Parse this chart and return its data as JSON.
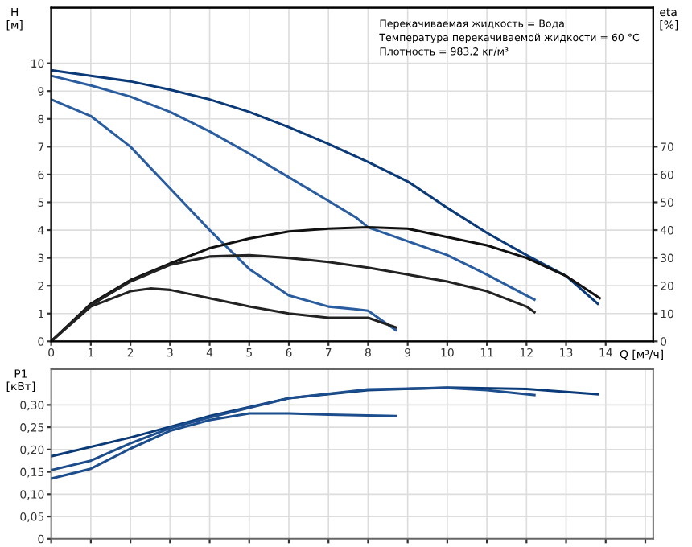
{
  "chart_data": [
    {
      "type": "line",
      "xlabel": "Q [м³/ч]",
      "ylabel": "H\n[м]",
      "y2label": "eta\n[%]",
      "annotations": [
        "Перекачиваемая жидкость = Вода",
        "Температура перекачиваемой жидкости = 60 °C",
        "Плотность = 983.2 кг/м³"
      ],
      "xlim": [
        0,
        15.2
      ],
      "xticks": [
        0,
        1,
        2,
        3,
        4,
        5,
        6,
        7,
        8,
        9,
        10,
        11,
        12,
        13,
        14
      ],
      "ylim": [
        0,
        12
      ],
      "yticks": [
        0,
        1,
        2,
        3,
        4,
        5,
        6,
        7,
        8,
        9,
        10
      ],
      "y2lim": [
        0,
        120
      ],
      "y2ticks": [
        0,
        10,
        20,
        30,
        40,
        50,
        60,
        70
      ],
      "grid": true,
      "marker": "none",
      "line_style": "solid",
      "series": [
        {
          "color": "#0b3a78",
          "x": [
            0,
            1,
            2,
            3,
            4,
            5,
            6,
            7,
            8,
            9,
            10,
            11,
            12,
            12.4,
            13,
            13.8
          ],
          "values": [
            9.75,
            9.55,
            9.35,
            9.05,
            8.7,
            8.25,
            7.7,
            7.1,
            6.45,
            5.75,
            4.8,
            3.9,
            3.1,
            2.8,
            2.35,
            1.35
          ]
        },
        {
          "color": "#2a5d9f",
          "x": [
            0,
            1,
            2,
            3,
            4,
            5,
            6,
            7,
            7.7,
            8,
            9,
            10,
            11,
            12,
            12.2
          ],
          "values": [
            9.55,
            9.2,
            8.8,
            8.25,
            7.55,
            6.75,
            5.9,
            5.05,
            4.45,
            4.1,
            3.6,
            3.1,
            2.4,
            1.65,
            1.5
          ]
        },
        {
          "color": "#2a5d9f",
          "x": [
            0,
            1,
            2,
            3,
            4,
            5,
            6,
            7,
            7.7,
            8,
            8.7
          ],
          "values": [
            8.7,
            8.1,
            7.0,
            5.5,
            4.0,
            2.6,
            1.65,
            1.25,
            1.15,
            1.1,
            0.4
          ]
        },
        {
          "color": "#111111",
          "axis": "y2",
          "x": [
            0,
            1,
            2,
            3,
            4,
            5,
            6,
            7,
            8,
            9,
            10,
            11,
            12,
            13,
            13.85
          ],
          "values": [
            0,
            13.5,
            22,
            28,
            33.5,
            37,
            39.5,
            40.5,
            41,
            40.5,
            37.5,
            34.5,
            30,
            23.5,
            15.5
          ]
        },
        {
          "color": "#222222",
          "axis": "y2",
          "x": [
            0,
            1,
            2,
            3,
            4,
            5,
            6,
            7,
            8,
            9,
            10,
            11,
            12,
            12.2
          ],
          "values": [
            0,
            13,
            21.5,
            27.5,
            30.5,
            31,
            30,
            28.5,
            26.5,
            24,
            21.5,
            18,
            12.5,
            10.5
          ]
        },
        {
          "color": "#222222",
          "axis": "y2",
          "x": [
            0,
            1,
            2,
            2.5,
            3,
            4,
            5,
            6,
            7,
            8,
            8.7
          ],
          "values": [
            0,
            12.5,
            18,
            19,
            18.5,
            15.5,
            12.5,
            10,
            8.5,
            8.5,
            5
          ]
        }
      ]
    },
    {
      "type": "line",
      "ylabel": "P1\n[кВт]",
      "tick_labels": "y",
      "xlim": [
        0,
        15.2
      ],
      "xticks": [
        {
          "value": 0,
          "label": null
        },
        {
          "value": 1,
          "label": null
        },
        {
          "value": 2,
          "label": null
        },
        {
          "value": 3,
          "label": null
        },
        {
          "value": 4,
          "label": null
        },
        {
          "value": 5,
          "label": null
        },
        {
          "value": 6,
          "label": null
        },
        {
          "value": 7,
          "label": null
        },
        {
          "value": 8,
          "label": null
        },
        {
          "value": 9,
          "label": null
        },
        {
          "value": 10,
          "label": null
        },
        {
          "value": 11,
          "label": null
        },
        {
          "value": 12,
          "label": null
        },
        {
          "value": 13,
          "label": null
        },
        {
          "value": 14,
          "label": null
        },
        {
          "value": 15,
          "label": null
        }
      ],
      "ylim": [
        0,
        0.38
      ],
      "yticks": [
        0,
        {
          "value": 0.05,
          "label": "0,05"
        },
        {
          "value": 0.1,
          "label": "0,10"
        },
        {
          "value": 0.15,
          "label": "0,15"
        },
        {
          "value": 0.2,
          "label": "0,20"
        },
        {
          "value": 0.25,
          "label": "0,25"
        },
        {
          "value": 0.3,
          "label": "0,30"
        }
      ],
      "grid": true,
      "marker": "none",
      "line_style": "solid",
      "series": [
        {
          "color": "#0b3a78",
          "x": [
            0,
            2,
            4,
            6,
            8,
            10,
            12,
            13.8
          ],
          "values": [
            0.185,
            0.227,
            0.275,
            0.315,
            0.333,
            0.339,
            0.336,
            0.324
          ]
        },
        {
          "color": "#1c4d8c",
          "x": [
            0,
            1,
            2,
            3,
            4,
            6,
            8,
            10,
            11,
            12.2
          ],
          "values": [
            0.154,
            0.175,
            0.214,
            0.248,
            0.272,
            0.315,
            0.335,
            0.338,
            0.333,
            0.322
          ]
        },
        {
          "color": "#1c4d8c",
          "x": [
            0,
            1,
            2,
            3,
            4,
            5,
            6,
            7,
            8.7
          ],
          "values": [
            0.135,
            0.157,
            0.202,
            0.242,
            0.266,
            0.281,
            0.281,
            0.278,
            0.275
          ]
        }
      ]
    }
  ]
}
